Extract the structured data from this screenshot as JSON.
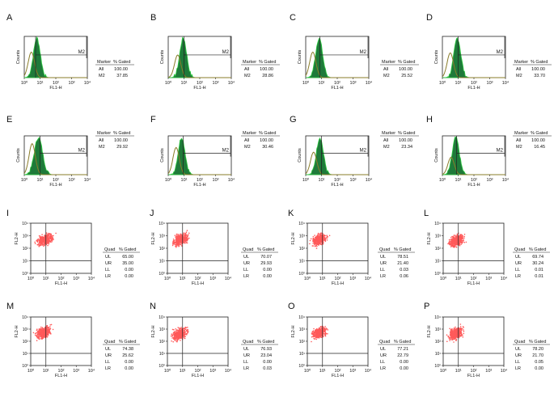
{
  "figure": {
    "background": "#ffffff"
  },
  "colors": {
    "green_fill": "#1f7a3a",
    "green_edge": "#2ecc40",
    "olive_curve": "#8a7d2a",
    "red_dots": "#ff5a5a",
    "line": "#222222"
  },
  "chart_data": [
    {
      "panel_id": "A",
      "type": "histogram",
      "marker_header": "Marker",
      "gated_header": "% Gated",
      "all_label": "All",
      "all_value": "100.00",
      "gate_label": "M2",
      "gate_value": "37.85",
      "xlabel": "FL1-H",
      "ylabel": "Counts",
      "x_ticks": [
        "10⁰",
        "10¹",
        "10²",
        "10³",
        "10⁴"
      ],
      "xlim_log": [
        0,
        4
      ],
      "gate_log": [
        0.72,
        3.95
      ],
      "green_peak_log": 0.8,
      "green_width_log": 0.22,
      "olive_peak_log": 0.45,
      "olive_width_log": 0.2,
      "olive_height": 0.62
    },
    {
      "panel_id": "B",
      "type": "histogram",
      "marker_header": "Marker",
      "gated_header": "% Gated",
      "all_label": "All",
      "all_value": "100.00",
      "gate_label": "M2",
      "gate_value": "28.86",
      "xlabel": "FL1-H",
      "ylabel": "Counts",
      "x_ticks": [
        "10⁰",
        "10¹",
        "10²",
        "10³",
        "10⁴"
      ],
      "xlim_log": [
        0,
        4
      ],
      "gate_log": [
        1.0,
        3.95
      ],
      "green_peak_log": 0.95,
      "green_width_log": 0.22,
      "olive_peak_log": 0.6,
      "olive_width_log": 0.2,
      "olive_height": 0.55
    },
    {
      "panel_id": "C",
      "type": "histogram",
      "marker_header": "Marker",
      "gated_header": "% Gated",
      "all_label": "All",
      "all_value": "100.00",
      "gate_label": "M2",
      "gate_value": "25.52",
      "xlabel": "FL1-H",
      "ylabel": "Counts",
      "x_ticks": [
        "10⁰",
        "10¹",
        "10²",
        "10³",
        "10⁴"
      ],
      "xlim_log": [
        0,
        4
      ],
      "gate_log": [
        0.9,
        3.95
      ],
      "green_peak_log": 0.85,
      "green_width_log": 0.22,
      "olive_peak_log": 0.45,
      "olive_width_log": 0.2,
      "olive_height": 0.62
    },
    {
      "panel_id": "D",
      "type": "histogram",
      "marker_header": "Marker",
      "gated_header": "% Gated",
      "all_label": "All",
      "all_value": "100.00",
      "gate_label": "M2",
      "gate_value": "33.70",
      "xlabel": "FL1-H",
      "ylabel": "Counts",
      "x_ticks": [
        "10⁰",
        "10¹",
        "10²",
        "10³",
        "10⁴"
      ],
      "xlim_log": [
        0,
        4
      ],
      "gate_log": [
        1.0,
        3.95
      ],
      "green_peak_log": 0.95,
      "green_width_log": 0.22,
      "olive_peak_log": 0.5,
      "olive_width_log": 0.2,
      "olive_height": 0.6
    },
    {
      "panel_id": "E",
      "type": "histogram",
      "marker_header": "Marker",
      "gated_header": "% Gated",
      "all_label": "All",
      "all_value": "100.00",
      "gate_label": "M2",
      "gate_value": "29.92",
      "xlabel": "FL1-H",
      "ylabel": "Counts",
      "x_ticks": [
        "10⁰",
        "10¹",
        "10²",
        "10³",
        "10⁴"
      ],
      "xlim_log": [
        0,
        4
      ],
      "gate_log": [
        1.0,
        3.95
      ],
      "green_peak_log": 0.9,
      "green_width_log": 0.26,
      "olive_peak_log": 0.5,
      "olive_width_log": 0.2,
      "olive_height": 0.8
    },
    {
      "panel_id": "F",
      "type": "histogram",
      "marker_header": "Marker",
      "gated_header": "% Gated",
      "all_label": "All",
      "all_value": "100.00",
      "gate_label": "M2",
      "gate_value": "30.46",
      "xlabel": "FL1-H",
      "ylabel": "Counts",
      "x_ticks": [
        "10⁰",
        "10¹",
        "10²",
        "10³",
        "10⁴"
      ],
      "xlim_log": [
        0,
        4
      ],
      "gate_log": [
        0.95,
        3.95
      ],
      "green_peak_log": 0.85,
      "green_width_log": 0.22,
      "olive_peak_log": 0.5,
      "olive_width_log": 0.2,
      "olive_height": 0.7
    },
    {
      "panel_id": "G",
      "type": "histogram",
      "marker_header": "Marker",
      "gated_header": "% Gated",
      "all_label": "All",
      "all_value": "100.00",
      "gate_label": "M2",
      "gate_value": "23.34",
      "xlabel": "FL1-H",
      "ylabel": "Counts",
      "x_ticks": [
        "10⁰",
        "10¹",
        "10²",
        "10³",
        "10⁴"
      ],
      "xlim_log": [
        0,
        4
      ],
      "gate_log": [
        1.0,
        3.95
      ],
      "green_peak_log": 0.9,
      "green_width_log": 0.22,
      "olive_peak_log": 0.5,
      "olive_width_log": 0.2,
      "olive_height": 0.58
    },
    {
      "panel_id": "H",
      "type": "histogram",
      "marker_header": "Marker",
      "gated_header": "% Gated",
      "all_label": "All",
      "all_value": "100.00",
      "gate_label": "M2",
      "gate_value": "16.45",
      "xlabel": "FL1-H",
      "ylabel": "Counts",
      "x_ticks": [
        "10⁰",
        "10¹",
        "10²",
        "10³",
        "10⁴"
      ],
      "xlim_log": [
        0,
        4
      ],
      "gate_log": [
        0.9,
        3.95
      ],
      "green_peak_log": 0.85,
      "green_width_log": 0.22,
      "olive_peak_log": 0.55,
      "olive_width_log": 0.2,
      "olive_height": 0.45
    },
    {
      "panel_id": "I",
      "type": "scatter",
      "quad_header": "Quad",
      "gated_header": "% Gated",
      "xlabel": "FL1-H",
      "ylabel": "FL2-H",
      "x_ticks": [
        "10⁰",
        "10¹",
        "10²",
        "10³",
        "10⁴"
      ],
      "y_ticks": [
        "10⁰",
        "10¹",
        "10²",
        "10³",
        "10⁴"
      ],
      "xlim_log": [
        0,
        4
      ],
      "ylim_log": [
        0,
        4
      ],
      "quad_split_log": [
        1.0,
        1.0
      ],
      "quadrants": [
        {
          "label": "UL",
          "value": "65.00"
        },
        {
          "label": "UR",
          "value": "35.00"
        },
        {
          "label": "LL",
          "value": "0.00"
        },
        {
          "label": "LR",
          "value": "0.00"
        }
      ],
      "cluster_center_log": [
        0.95,
        2.7
      ],
      "cluster_spread_log": [
        0.32,
        0.28
      ]
    },
    {
      "panel_id": "J",
      "type": "scatter",
      "quad_header": "Quad",
      "gated_header": "% Gated",
      "xlabel": "FL1-H",
      "ylabel": "FL2-H",
      "x_ticks": [
        "10⁰",
        "10¹",
        "10²",
        "10³",
        "10⁴"
      ],
      "y_ticks": [
        "10⁰",
        "10¹",
        "10²",
        "10³",
        "10⁴"
      ],
      "xlim_log": [
        0,
        4
      ],
      "ylim_log": [
        0,
        4
      ],
      "quad_split_log": [
        1.0,
        1.0
      ],
      "quadrants": [
        {
          "label": "UL",
          "value": "70.07"
        },
        {
          "label": "UR",
          "value": "29.93"
        },
        {
          "label": "LL",
          "value": "0.00"
        },
        {
          "label": "LR",
          "value": "0.00"
        }
      ],
      "cluster_center_log": [
        0.9,
        2.7
      ],
      "cluster_spread_log": [
        0.32,
        0.28
      ]
    },
    {
      "panel_id": "K",
      "type": "scatter",
      "quad_header": "Quad",
      "gated_header": "% Gated",
      "xlabel": "FL1-H",
      "ylabel": "FL2-H",
      "x_ticks": [
        "10⁰",
        "10¹",
        "10²",
        "10³",
        "10⁴"
      ],
      "y_ticks": [
        "10⁰",
        "10¹",
        "10²",
        "10³",
        "10⁴"
      ],
      "xlim_log": [
        0,
        4
      ],
      "ylim_log": [
        0,
        4
      ],
      "quad_split_log": [
        1.0,
        1.0
      ],
      "quadrants": [
        {
          "label": "UL",
          "value": "78.51"
        },
        {
          "label": "UR",
          "value": "21.40"
        },
        {
          "label": "LL",
          "value": "0.03"
        },
        {
          "label": "LR",
          "value": "0.06"
        }
      ],
      "cluster_center_log": [
        0.8,
        2.7
      ],
      "cluster_spread_log": [
        0.3,
        0.28
      ]
    },
    {
      "panel_id": "L",
      "type": "scatter",
      "quad_header": "Quad",
      "gated_header": "% Gated",
      "xlabel": "FL1-H",
      "ylabel": "FL2-H",
      "x_ticks": [
        "10⁰",
        "10¹",
        "10²",
        "10³",
        "10⁴"
      ],
      "y_ticks": [
        "10⁰",
        "10¹",
        "10²",
        "10³",
        "10⁴"
      ],
      "xlim_log": [
        0,
        4
      ],
      "ylim_log": [
        0,
        4
      ],
      "quad_split_log": [
        1.0,
        1.0
      ],
      "quadrants": [
        {
          "label": "UL",
          "value": "69.74"
        },
        {
          "label": "UR",
          "value": "30.24"
        },
        {
          "label": "LL",
          "value": "0.01"
        },
        {
          "label": "LR",
          "value": "0.01"
        }
      ],
      "cluster_center_log": [
        0.9,
        2.6
      ],
      "cluster_spread_log": [
        0.32,
        0.3
      ]
    },
    {
      "panel_id": "M",
      "type": "scatter",
      "quad_header": "Quad",
      "gated_header": "% Gated",
      "xlabel": "FL1-H",
      "ylabel": "FL2-H",
      "x_ticks": [
        "10⁰",
        "10¹",
        "10²",
        "10³",
        "10⁴"
      ],
      "y_ticks": [
        "10⁰",
        "10¹",
        "10²",
        "10³",
        "10⁴"
      ],
      "xlim_log": [
        0,
        4
      ],
      "ylim_log": [
        0,
        4
      ],
      "quad_split_log": [
        1.0,
        1.0
      ],
      "quadrants": [
        {
          "label": "UL",
          "value": "74.38"
        },
        {
          "label": "UR",
          "value": "25.62"
        },
        {
          "label": "LL",
          "value": "0.00"
        },
        {
          "label": "LR",
          "value": "0.00"
        }
      ],
      "cluster_center_log": [
        0.85,
        2.7
      ],
      "cluster_spread_log": [
        0.32,
        0.28
      ]
    },
    {
      "panel_id": "N",
      "type": "scatter",
      "quad_header": "Quad",
      "gated_header": "% Gated",
      "xlabel": "FL1-H",
      "ylabel": "FL2-H",
      "x_ticks": [
        "10⁰",
        "10¹",
        "10²",
        "10³",
        "10⁴"
      ],
      "y_ticks": [
        "10⁰",
        "10¹",
        "10²",
        "10³",
        "10⁴"
      ],
      "xlim_log": [
        0,
        4
      ],
      "ylim_log": [
        0,
        4
      ],
      "quad_split_log": [
        1.0,
        1.0
      ],
      "quadrants": [
        {
          "label": "UL",
          "value": "76.93"
        },
        {
          "label": "UR",
          "value": "23.04"
        },
        {
          "label": "LL",
          "value": "0.00"
        },
        {
          "label": "LR",
          "value": "0.03"
        }
      ],
      "cluster_center_log": [
        0.8,
        2.6
      ],
      "cluster_spread_log": [
        0.3,
        0.32
      ]
    },
    {
      "panel_id": "O",
      "type": "scatter",
      "quad_header": "Quad",
      "gated_header": "% Gated",
      "xlabel": "FL1-H",
      "ylabel": "FL2-H",
      "x_ticks": [
        "10⁰",
        "10¹",
        "10²",
        "10³",
        "10⁴"
      ],
      "y_ticks": [
        "10⁰",
        "10¹",
        "10²",
        "10³",
        "10⁴"
      ],
      "xlim_log": [
        0,
        4
      ],
      "ylim_log": [
        0,
        4
      ],
      "quad_split_log": [
        1.0,
        1.0
      ],
      "quadrants": [
        {
          "label": "UL",
          "value": "77.21"
        },
        {
          "label": "UR",
          "value": "22.79"
        },
        {
          "label": "LL",
          "value": "0.00"
        },
        {
          "label": "LR",
          "value": "0.00"
        }
      ],
      "cluster_center_log": [
        0.8,
        2.7
      ],
      "cluster_spread_log": [
        0.3,
        0.28
      ]
    },
    {
      "panel_id": "P",
      "type": "scatter",
      "quad_header": "Quad",
      "gated_header": "% Gated",
      "xlabel": "FL1-H",
      "ylabel": "FL2-H",
      "x_ticks": [
        "10⁰",
        "10¹",
        "10²",
        "10³",
        "10⁴"
      ],
      "y_ticks": [
        "10⁰",
        "10¹",
        "10²",
        "10³",
        "10⁴"
      ],
      "xlim_log": [
        0,
        4
      ],
      "ylim_log": [
        0,
        4
      ],
      "quad_split_log": [
        1.0,
        1.0
      ],
      "quadrants": [
        {
          "label": "UL",
          "value": "78.20"
        },
        {
          "label": "UR",
          "value": "21.70"
        },
        {
          "label": "LL",
          "value": "0.05"
        },
        {
          "label": "LR",
          "value": "0.00"
        }
      ],
      "cluster_center_log": [
        0.8,
        2.6
      ],
      "cluster_spread_log": [
        0.3,
        0.3
      ]
    }
  ]
}
